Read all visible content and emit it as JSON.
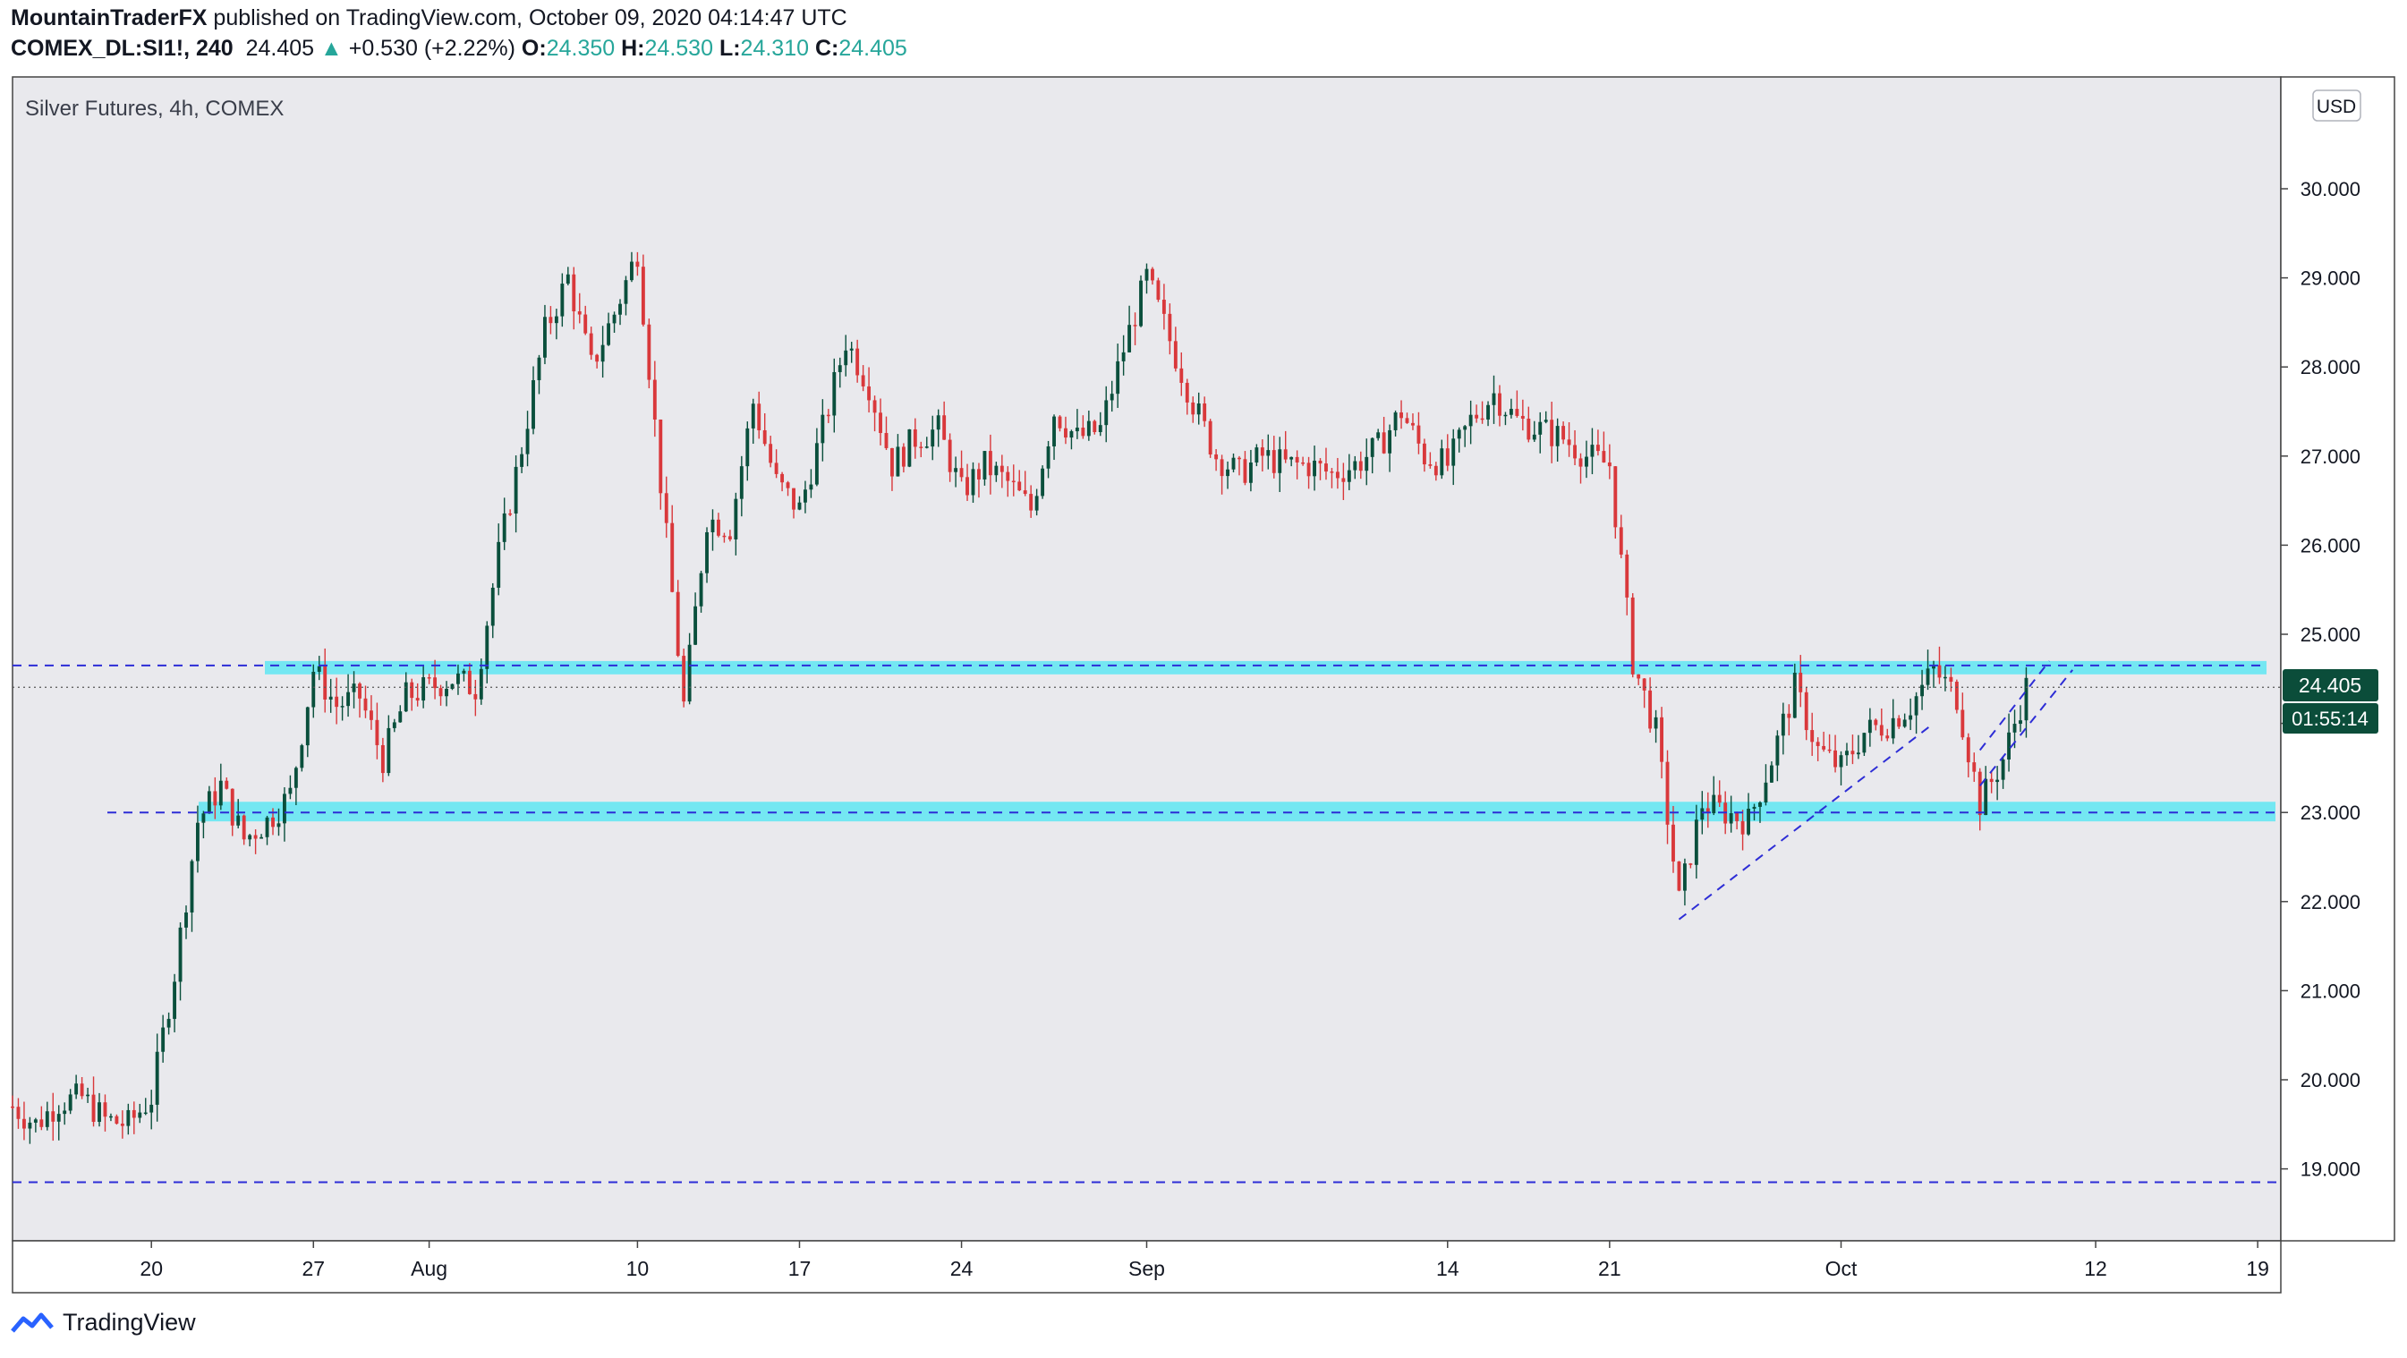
{
  "header": {
    "author": "MountainTraderFX",
    "published": " published on TradingView.com, October 09, 2020 04:14:47 UTC",
    "symbol": "COMEX_DL:SI1!, 240",
    "last": "24.405",
    "arrow": "▲",
    "change": "+0.530 (+2.22%)",
    "o_label": "O:",
    "o_value": "24.350",
    "h_label": "H:",
    "h_value": "24.530",
    "l_label": "L:",
    "l_value": "24.310",
    "c_label": "C:",
    "c_value": "24.405"
  },
  "footer": {
    "brand": "TradingView"
  },
  "colors": {
    "plot_bg": "#e9e9ed",
    "up": "#0a4f3c",
    "down": "#d9383b",
    "zone": "#6ee7f2",
    "dashed": "#2d2dd6",
    "price_tag": "#0b4d3a",
    "text": "#131722"
  },
  "chart_data": {
    "type": "candlestick",
    "title": "Silver Futures, 4h, COMEX",
    "currency": "USD",
    "ylim": [
      18.2,
      31.0
    ],
    "yticks": [
      19,
      20,
      21,
      22,
      23,
      24,
      25,
      26,
      27,
      28,
      29,
      30
    ],
    "ytick_labels": [
      "19.000",
      "20.000",
      "21.000",
      "22.000",
      "23.000",
      "24.000",
      "25.000",
      "26.000",
      "27.000",
      "28.000",
      "29.000",
      "30.000"
    ],
    "x_range": [
      "2020-07-14",
      "2020-10-20"
    ],
    "xticks": [
      {
        "date": "2020-07-20",
        "label": "20"
      },
      {
        "date": "2020-07-27",
        "label": "27"
      },
      {
        "date": "2020-08-01",
        "label": "Aug"
      },
      {
        "date": "2020-08-10",
        "label": "10"
      },
      {
        "date": "2020-08-17",
        "label": "17"
      },
      {
        "date": "2020-08-24",
        "label": "24"
      },
      {
        "date": "2020-09-01",
        "label": "Sep"
      },
      {
        "date": "2020-09-14",
        "label": "14"
      },
      {
        "date": "2020-09-21",
        "label": "21"
      },
      {
        "date": "2020-10-01",
        "label": "Oct"
      },
      {
        "date": "2020-10-12",
        "label": "12"
      },
      {
        "date": "2020-10-19",
        "label": "19"
      }
    ],
    "price_path": [
      [
        "2020-07-14",
        19.7
      ],
      [
        "2020-07-15",
        19.5
      ],
      [
        "2020-07-16",
        19.75
      ],
      [
        "2020-07-17",
        19.8
      ],
      [
        "2020-07-18",
        19.55
      ],
      [
        "2020-07-19",
        19.5
      ],
      [
        "2020-07-20",
        19.8
      ],
      [
        "2020-07-21",
        21.2
      ],
      [
        "2020-07-22",
        22.9
      ],
      [
        "2020-07-23",
        23.3
      ],
      [
        "2020-07-24",
        22.7
      ],
      [
        "2020-07-25",
        22.9
      ],
      [
        "2020-07-26",
        23.2
      ],
      [
        "2020-07-27",
        24.6
      ],
      [
        "2020-07-28",
        24.2
      ],
      [
        "2020-07-29",
        24.3
      ],
      [
        "2020-07-30",
        23.6
      ],
      [
        "2020-07-31",
        24.3
      ],
      [
        "2020-08-02",
        24.5
      ],
      [
        "2020-08-03",
        24.4
      ],
      [
        "2020-08-04",
        25.9
      ],
      [
        "2020-08-05",
        27.1
      ],
      [
        "2020-08-06",
        28.4
      ],
      [
        "2020-08-07",
        29.0
      ],
      [
        "2020-08-08",
        28.0
      ],
      [
        "2020-08-09",
        28.6
      ],
      [
        "2020-08-10",
        29.3
      ],
      [
        "2020-08-11",
        26.7
      ],
      [
        "2020-08-12",
        24.2
      ],
      [
        "2020-08-13",
        26.3
      ],
      [
        "2020-08-14",
        26.2
      ],
      [
        "2020-08-15",
        27.6
      ],
      [
        "2020-08-16",
        26.7
      ],
      [
        "2020-08-17",
        26.4
      ],
      [
        "2020-08-18",
        27.3
      ],
      [
        "2020-08-19",
        28.3
      ],
      [
        "2020-08-20",
        27.8
      ],
      [
        "2020-08-21",
        26.9
      ],
      [
        "2020-08-22",
        27.2
      ],
      [
        "2020-08-23",
        27.3
      ],
      [
        "2020-08-24",
        26.6
      ],
      [
        "2020-08-25",
        26.9
      ],
      [
        "2020-08-26",
        26.7
      ],
      [
        "2020-08-27",
        26.4
      ],
      [
        "2020-08-28",
        27.5
      ],
      [
        "2020-08-29",
        27.2
      ],
      [
        "2020-08-30",
        27.3
      ],
      [
        "2020-08-31",
        28.2
      ],
      [
        "2020-09-01",
        29.0
      ],
      [
        "2020-09-02",
        28.3
      ],
      [
        "2020-09-03",
        27.6
      ],
      [
        "2020-09-04",
        27.0
      ],
      [
        "2020-09-05",
        26.8
      ],
      [
        "2020-09-06",
        27.0
      ],
      [
        "2020-09-07",
        26.9
      ],
      [
        "2020-09-08",
        26.9
      ],
      [
        "2020-09-09",
        26.8
      ],
      [
        "2020-09-10",
        26.9
      ],
      [
        "2020-09-11",
        27.1
      ],
      [
        "2020-09-12",
        27.5
      ],
      [
        "2020-09-13",
        27.0
      ],
      [
        "2020-09-14",
        26.9
      ],
      [
        "2020-09-15",
        27.4
      ],
      [
        "2020-09-16",
        27.7
      ],
      [
        "2020-09-17",
        27.4
      ],
      [
        "2020-09-18",
        27.3
      ],
      [
        "2020-09-19",
        27.2
      ],
      [
        "2020-09-20",
        27.0
      ],
      [
        "2020-09-21",
        26.9
      ],
      [
        "2020-09-22",
        24.7
      ],
      [
        "2020-09-23",
        23.9
      ],
      [
        "2020-09-24",
        22.0
      ],
      [
        "2020-09-25",
        23.1
      ],
      [
        "2020-09-26",
        23.0
      ],
      [
        "2020-09-27",
        22.9
      ],
      [
        "2020-09-28",
        23.6
      ],
      [
        "2020-09-29",
        24.4
      ],
      [
        "2020-09-30",
        23.7
      ],
      [
        "2020-10-01",
        23.5
      ],
      [
        "2020-10-02",
        23.9
      ],
      [
        "2020-10-03",
        24.0
      ],
      [
        "2020-10-04",
        24.2
      ],
      [
        "2020-10-05",
        24.6
      ],
      [
        "2020-10-06",
        24.3
      ],
      [
        "2020-10-07",
        23.1
      ],
      [
        "2020-10-08",
        23.6
      ],
      [
        "2020-10-09",
        24.405
      ]
    ],
    "support_resistance_zones": [
      {
        "top": 24.7,
        "bottom": 24.55
      },
      {
        "top": 23.12,
        "bottom": 22.9
      }
    ],
    "horizontal_dashed_lines": [
      24.65,
      23.0,
      18.85
    ],
    "trend_lines": [
      {
        "from": [
          "2020-09-24",
          21.8
        ],
        "to": [
          "2020-10-05",
          24.0
        ]
      },
      {
        "from": [
          "2020-10-07",
          23.3
        ],
        "to": [
          "2020-10-11",
          24.6
        ]
      },
      {
        "from": [
          "2020-10-07",
          23.7
        ],
        "to": [
          "2020-10-10",
          24.7
        ]
      }
    ],
    "last_price": 24.405,
    "last_price_label": "24.405",
    "countdown_label": "01:55:14"
  }
}
